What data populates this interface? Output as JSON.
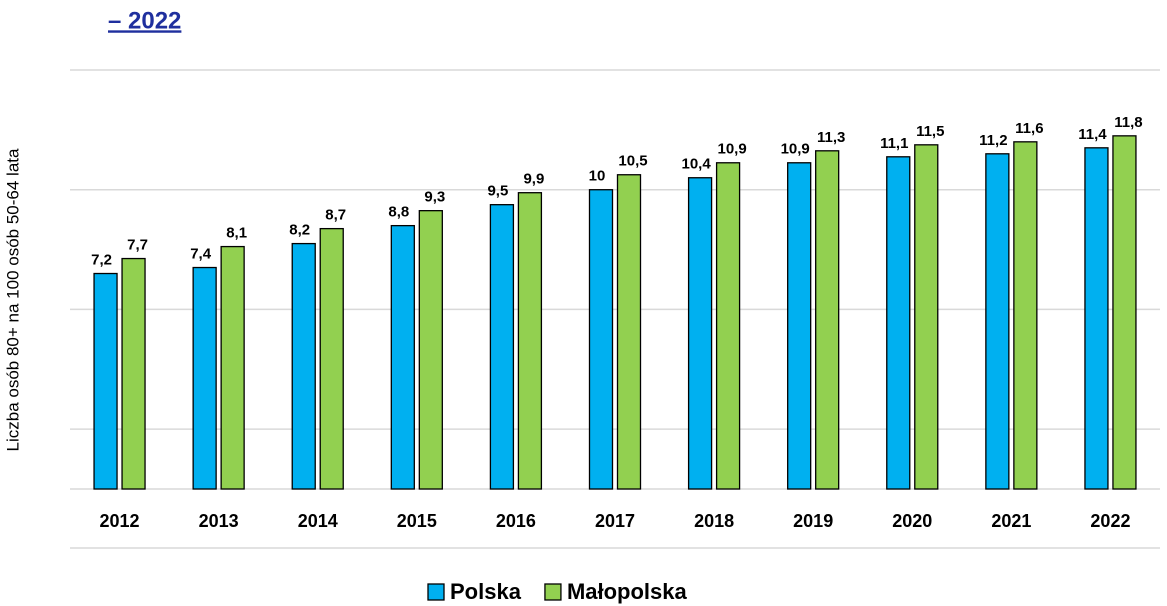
{
  "chart_data": {
    "type": "bar",
    "title": "– 2022",
    "y_label": "Liczba osób 80+ na 100 osób 50-64 lata",
    "categories": [
      "2012",
      "2013",
      "2014",
      "2015",
      "2016",
      "2017",
      "2018",
      "2019",
      "2020",
      "2021",
      "2022"
    ],
    "series": [
      {
        "name": "Polska",
        "color": "#00b0f0",
        "values": [
          7.2,
          7.4,
          8.2,
          8.8,
          9.5,
          10,
          10.4,
          10.9,
          11.1,
          11.2,
          11.4
        ],
        "value_labels": [
          "7,2",
          "7,4",
          "8,2",
          "8,8",
          "9,5",
          "10",
          "10,4",
          "10,9",
          "11,1",
          "11,2",
          "11,4"
        ]
      },
      {
        "name": "Małopolska",
        "color": "#92d050",
        "values": [
          7.7,
          8.1,
          8.7,
          9.3,
          9.9,
          10.5,
          10.9,
          11.3,
          11.5,
          11.6,
          11.8
        ],
        "value_labels": [
          "7,7",
          "8,1",
          "8,7",
          "9,3",
          "9,9",
          "10,5",
          "10,9",
          "11,3",
          "11,5",
          "11,6",
          "11,8"
        ]
      }
    ],
    "ylim": [
      0,
      14
    ],
    "yticks": [
      2,
      6,
      10,
      14
    ],
    "grid": true,
    "legend": "bottom"
  }
}
